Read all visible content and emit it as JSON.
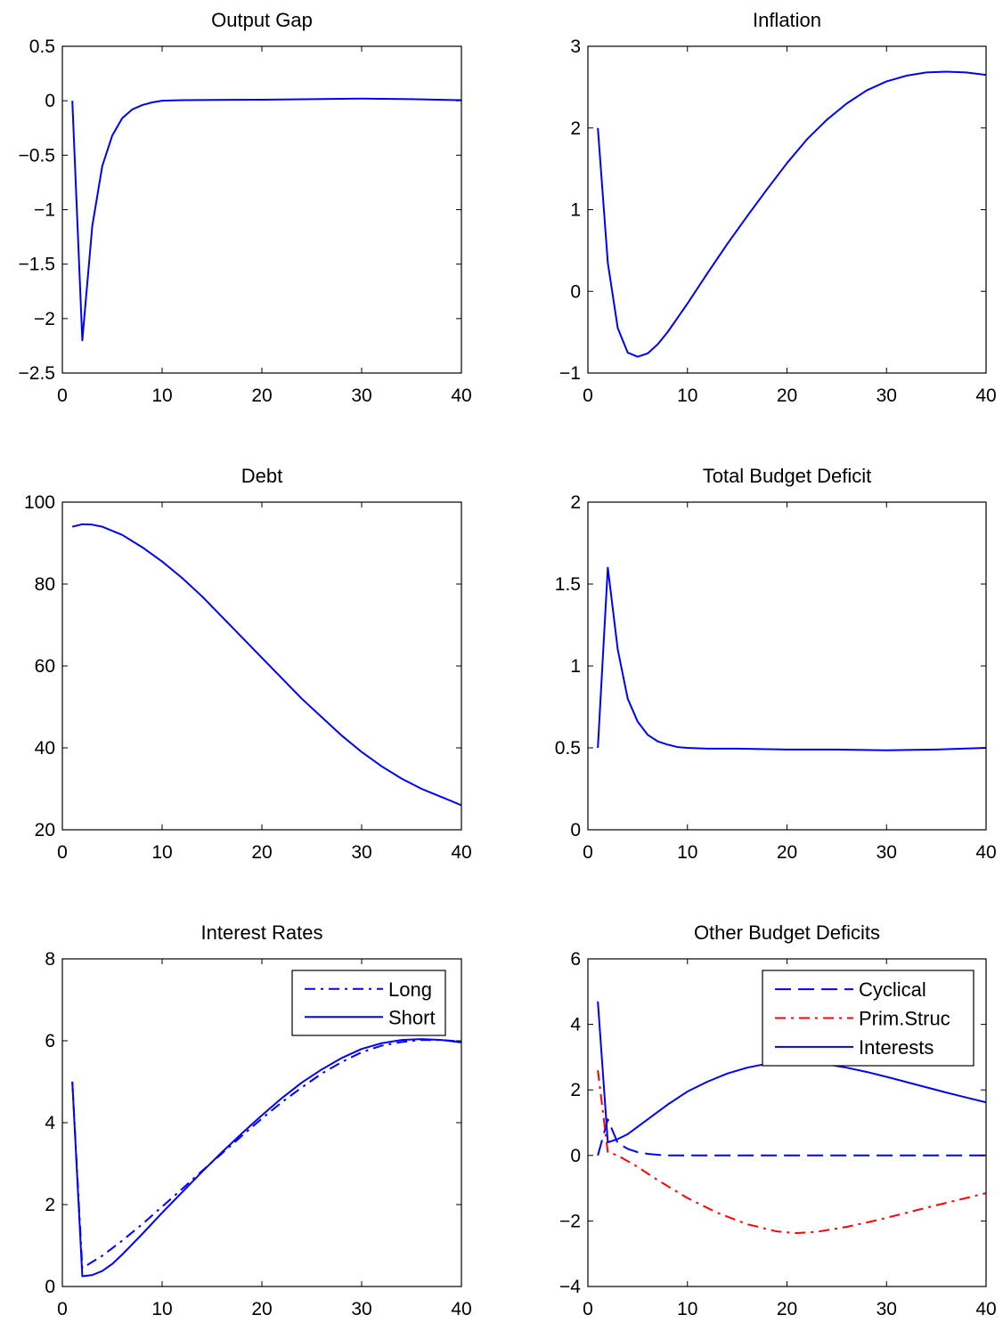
{
  "chart_data": [
    {
      "id": "output-gap",
      "type": "line",
      "title": "Output Gap",
      "xlabel": "",
      "ylabel": "",
      "xlim": [
        0,
        40
      ],
      "ylim": [
        -2.5,
        0.5
      ],
      "xticks": [
        0,
        10,
        20,
        30,
        40
      ],
      "yticks": [
        -2.5,
        -2,
        -1.5,
        -1,
        -0.5,
        0,
        0.5
      ],
      "grid": false,
      "legend": null,
      "series": [
        {
          "name": "",
          "color": "#0000ff",
          "style": "solid",
          "x": [
            1,
            2,
            3,
            4,
            5,
            6,
            7,
            8,
            9,
            10,
            12,
            15,
            20,
            25,
            30,
            35,
            40
          ],
          "y": [
            0,
            -2.2,
            -1.15,
            -0.6,
            -0.32,
            -0.16,
            -0.08,
            -0.04,
            -0.015,
            0,
            0.005,
            0.008,
            0.01,
            0.015,
            0.02,
            0.015,
            0.005
          ]
        }
      ]
    },
    {
      "id": "inflation",
      "type": "line",
      "title": "Inflation",
      "xlabel": "",
      "ylabel": "",
      "xlim": [
        0,
        40
      ],
      "ylim": [
        -1,
        3
      ],
      "xticks": [
        0,
        10,
        20,
        30,
        40
      ],
      "yticks": [
        -1,
        0,
        1,
        2,
        3
      ],
      "grid": false,
      "legend": null,
      "series": [
        {
          "name": "",
          "color": "#0000ff",
          "style": "solid",
          "x": [
            1,
            2,
            3,
            4,
            5,
            6,
            7,
            8,
            10,
            12,
            14,
            16,
            18,
            20,
            22,
            24,
            26,
            28,
            30,
            32,
            34,
            36,
            38,
            40
          ],
          "y": [
            2,
            0.35,
            -0.45,
            -0.75,
            -0.8,
            -0.76,
            -0.65,
            -0.5,
            -0.15,
            0.22,
            0.58,
            0.92,
            1.25,
            1.57,
            1.86,
            2.1,
            2.3,
            2.46,
            2.57,
            2.64,
            2.68,
            2.69,
            2.68,
            2.65
          ]
        }
      ]
    },
    {
      "id": "debt",
      "type": "line",
      "title": "Debt",
      "xlabel": "",
      "ylabel": "",
      "xlim": [
        0,
        40
      ],
      "ylim": [
        20,
        100
      ],
      "xticks": [
        0,
        10,
        20,
        30,
        40
      ],
      "yticks": [
        20,
        40,
        60,
        80,
        100
      ],
      "grid": false,
      "legend": null,
      "series": [
        {
          "name": "",
          "color": "#0000ff",
          "style": "solid",
          "x": [
            1,
            2,
            3,
            4,
            6,
            8,
            10,
            12,
            14,
            16,
            18,
            20,
            22,
            24,
            26,
            28,
            30,
            32,
            34,
            36,
            38,
            40
          ],
          "y": [
            94,
            94.6,
            94.5,
            94,
            92,
            89,
            85.5,
            81.5,
            77,
            72,
            67,
            62,
            57,
            52,
            47.5,
            43,
            39,
            35.5,
            32.5,
            30,
            28,
            26
          ]
        }
      ]
    },
    {
      "id": "total-budget-deficit",
      "type": "line",
      "title": "Total Budget Deficit",
      "xlabel": "",
      "ylabel": "",
      "xlim": [
        0,
        40
      ],
      "ylim": [
        0,
        2
      ],
      "xticks": [
        0,
        10,
        20,
        30,
        40
      ],
      "yticks": [
        0,
        0.5,
        1,
        1.5,
        2
      ],
      "grid": false,
      "legend": null,
      "series": [
        {
          "name": "",
          "color": "#0000ff",
          "style": "solid",
          "x": [
            1,
            2,
            3,
            4,
            5,
            6,
            7,
            8,
            9,
            10,
            12,
            15,
            20,
            25,
            30,
            35,
            40
          ],
          "y": [
            0.5,
            1.6,
            1.1,
            0.8,
            0.66,
            0.58,
            0.54,
            0.52,
            0.505,
            0.5,
            0.495,
            0.495,
            0.49,
            0.49,
            0.485,
            0.49,
            0.5
          ]
        }
      ]
    },
    {
      "id": "interest-rates",
      "type": "line",
      "title": "Interest Rates",
      "xlabel": "",
      "ylabel": "",
      "xlim": [
        0,
        40
      ],
      "ylim": [
        0,
        8
      ],
      "xticks": [
        0,
        10,
        20,
        30,
        40
      ],
      "yticks": [
        0,
        2,
        4,
        6,
        8
      ],
      "grid": false,
      "legend": "top-right",
      "series": [
        {
          "name": "Long",
          "color": "#0000ff",
          "style": "dashdot",
          "x": [
            1,
            2,
            3,
            4,
            6,
            8,
            10,
            12,
            14,
            16,
            18,
            20,
            22,
            24,
            26,
            28,
            30,
            32,
            34,
            36,
            38,
            40
          ],
          "y": [
            5,
            0.45,
            0.6,
            0.75,
            1.12,
            1.52,
            1.95,
            2.38,
            2.82,
            3.25,
            3.68,
            4.1,
            4.5,
            4.86,
            5.2,
            5.48,
            5.72,
            5.88,
            5.97,
            6.02,
            6.02,
            5.98
          ]
        },
        {
          "name": "Short",
          "color": "#0000ff",
          "style": "solid",
          "x": [
            1,
            2,
            3,
            4,
            5,
            6,
            8,
            10,
            12,
            14,
            16,
            18,
            20,
            22,
            24,
            26,
            28,
            30,
            32,
            34,
            36,
            38,
            40
          ],
          "y": [
            5,
            0.25,
            0.28,
            0.38,
            0.55,
            0.78,
            1.28,
            1.8,
            2.3,
            2.8,
            3.28,
            3.74,
            4.18,
            4.6,
            4.98,
            5.3,
            5.58,
            5.8,
            5.94,
            6.02,
            6.04,
            6.02,
            5.96
          ]
        }
      ]
    },
    {
      "id": "other-budget-deficits",
      "type": "line",
      "title": "Other Budget Deficits",
      "xlabel": "",
      "ylabel": "",
      "xlim": [
        0,
        40
      ],
      "ylim": [
        -4,
        6
      ],
      "xticks": [
        0,
        10,
        20,
        30,
        40
      ],
      "yticks": [
        -4,
        -2,
        0,
        2,
        4,
        6
      ],
      "grid": false,
      "legend": "top-right",
      "series": [
        {
          "name": "Cyclical",
          "color": "#0000ff",
          "style": "dashed",
          "x": [
            1,
            2,
            3,
            4,
            5,
            6,
            7,
            8,
            10,
            15,
            20,
            25,
            30,
            35,
            40
          ],
          "y": [
            0,
            1.1,
            0.38,
            0.2,
            0.1,
            0.05,
            0.02,
            0,
            0,
            0,
            0,
            0,
            0,
            0,
            0
          ]
        },
        {
          "name": "Prim.Struc",
          "color": "#ff0000",
          "style": "dashdot",
          "x": [
            1,
            2,
            3,
            5,
            7,
            10,
            13,
            16,
            19,
            21,
            23,
            26,
            29,
            32,
            35,
            38,
            40
          ],
          "y": [
            2.6,
            0.1,
            0,
            -0.35,
            -0.75,
            -1.3,
            -1.75,
            -2.1,
            -2.32,
            -2.37,
            -2.33,
            -2.18,
            -1.98,
            -1.75,
            -1.52,
            -1.3,
            -1.15
          ]
        },
        {
          "name": "Interests",
          "color": "#0000ff",
          "style": "solid",
          "x": [
            1,
            2,
            3,
            4,
            6,
            8,
            10,
            12,
            14,
            16,
            18,
            20,
            22,
            24,
            26,
            28,
            30,
            32,
            34,
            36,
            38,
            40
          ],
          "y": [
            4.7,
            0.4,
            0.5,
            0.65,
            1.1,
            1.55,
            1.95,
            2.25,
            2.5,
            2.68,
            2.8,
            2.85,
            2.84,
            2.78,
            2.68,
            2.55,
            2.4,
            2.24,
            2.08,
            1.92,
            1.77,
            1.62
          ]
        }
      ]
    }
  ]
}
